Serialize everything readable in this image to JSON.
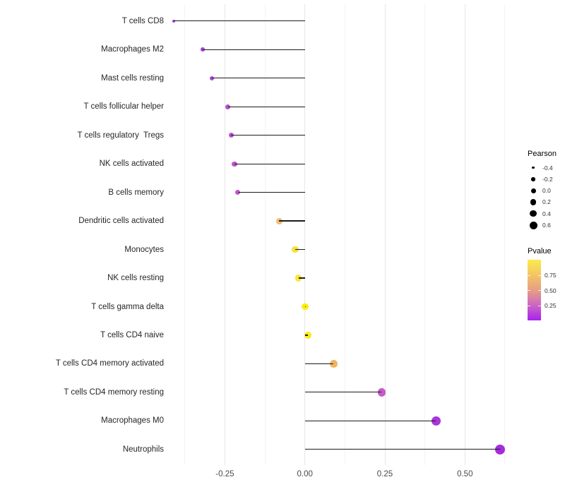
{
  "chart_data": {
    "type": "scatter",
    "subtype": "lollipop",
    "title": "",
    "xlabel": "",
    "ylabel": "",
    "grid": "on",
    "background": "#ffffff",
    "stem_color": "#1b1b1b",
    "xlim": [
      -0.43,
      0.64
    ],
    "x_ticks": [
      {
        "value": -0.25,
        "label": "-0.25"
      },
      {
        "value": 0.0,
        "label": "0.00"
      },
      {
        "value": 0.25,
        "label": "0.25"
      },
      {
        "value": 0.5,
        "label": "0.50"
      }
    ],
    "categories": [
      "T cells CD8",
      "Macrophages M2",
      "Mast cells resting",
      "T cells follicular helper",
      "T cells regulatory  Tregs",
      "NK cells activated",
      "B cells memory",
      "Dendritic cells activated",
      "Monocytes",
      "NK cells resting",
      "T cells gamma delta",
      "T cells CD4 naive",
      "T cells CD4 memory activated",
      "T cells CD4 memory resting",
      "Macrophages M0",
      "Neutrophils"
    ],
    "points": [
      {
        "label": "T cells CD8",
        "pearson": -0.41,
        "color": "#a43be4"
      },
      {
        "label": "Macrophages M2",
        "pearson": -0.32,
        "color": "#a83fdb"
      },
      {
        "label": "Mast cells resting",
        "pearson": -0.29,
        "color": "#ac47d6"
      },
      {
        "label": "T cells follicular helper",
        "pearson": -0.24,
        "color": "#b64fd0"
      },
      {
        "label": "T cells regulatory  Tregs",
        "pearson": -0.23,
        "color": "#b851cf"
      },
      {
        "label": "NK cells activated",
        "pearson": -0.22,
        "color": "#be55cb"
      },
      {
        "label": "B cells memory",
        "pearson": -0.21,
        "color": "#c158c9"
      },
      {
        "label": "Dendritic cells activated",
        "pearson": -0.08,
        "color": "#efbd79"
      },
      {
        "label": "Monocytes",
        "pearson": -0.03,
        "color": "#f5e040"
      },
      {
        "label": "NK cells resting",
        "pearson": -0.02,
        "color": "#f8e636"
      },
      {
        "label": "T cells gamma delta",
        "pearson": 0.0,
        "color": "#fbec0f"
      },
      {
        "label": "T cells CD4 naive",
        "pearson": 0.01,
        "color": "#fbea20"
      },
      {
        "label": "T cells CD4 memory activated",
        "pearson": 0.09,
        "color": "#efb464"
      },
      {
        "label": "T cells CD4 memory resting",
        "pearson": 0.24,
        "color": "#c55cc9"
      },
      {
        "label": "Macrophages M0",
        "pearson": 0.41,
        "color": "#a935dc"
      },
      {
        "label": "Neutrophils",
        "pearson": 0.61,
        "color": "#a52bdf"
      }
    ],
    "legend": {
      "position": "right",
      "size_legend": {
        "title": "Pearson",
        "entries": [
          {
            "label": "-0.4",
            "diameter": 3.5
          },
          {
            "label": "-0.2",
            "diameter": 5.5
          },
          {
            "label": "0.0",
            "diameter": 7
          },
          {
            "label": "0.2",
            "diameter": 8.5
          },
          {
            "label": "0.4",
            "diameter": 9.5
          },
          {
            "label": "0.6",
            "diameter": 11
          }
        ]
      },
      "color_legend": {
        "title": "Pvalue",
        "labels": [
          "0.75",
          "0.50",
          "0.25"
        ],
        "gradient_top_to_bottom": [
          "#faeb4d",
          "#f3c464",
          "#e59b87",
          "#cc63c6",
          "#a822ee"
        ]
      }
    }
  }
}
